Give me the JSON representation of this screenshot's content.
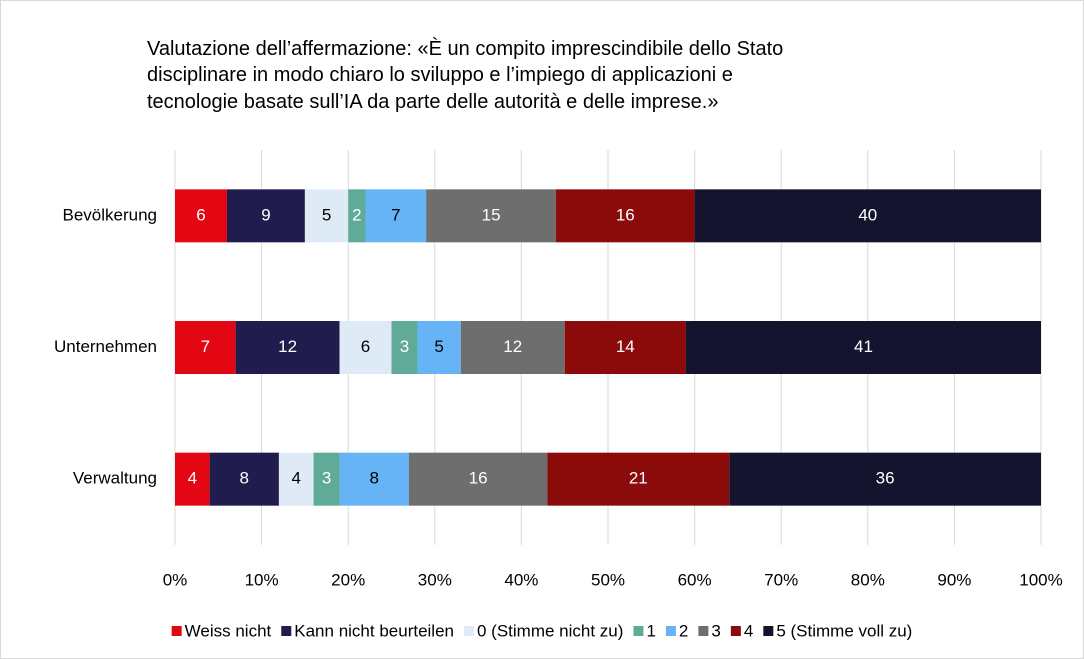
{
  "chart_data": {
    "type": "bar",
    "orientation": "horizontal",
    "stacked": true,
    "title": [
      "Valutazione dell’affermazione: «È un compito imprescindibile dello Stato",
      "disciplinare in modo chiaro lo sviluppo e l’impiego di applicazioni e",
      "tecnologie basate sull’IA da parte delle autorità e delle imprese.»"
    ],
    "categories": [
      "Bevölkerung",
      "Unternehmen",
      "Verwaltung"
    ],
    "series": [
      {
        "name": "Weiss nicht",
        "color": "#e30613",
        "values": [
          6,
          7,
          4
        ]
      },
      {
        "name": "Kann nicht beurteilen",
        "color": "#201c4e",
        "values": [
          9,
          12,
          8
        ]
      },
      {
        "name": "0 (Stimme nicht zu)",
        "color": "#deebf7",
        "values": [
          5,
          6,
          4
        ]
      },
      {
        "name": "1",
        "color": "#5fab98",
        "values": [
          2,
          3,
          3
        ]
      },
      {
        "name": "2",
        "color": "#66b3f5",
        "values": [
          7,
          5,
          8
        ]
      },
      {
        "name": "3",
        "color": "#6e6e6e",
        "values": [
          15,
          12,
          16
        ]
      },
      {
        "name": "4",
        "color": "#8b0a0a",
        "values": [
          16,
          14,
          21
        ]
      },
      {
        "name": "5 (Stimme voll zu)",
        "color": "#15142f",
        "values": [
          40,
          41,
          36
        ]
      }
    ],
    "xlim": [
      0,
      100
    ],
    "xticks": [
      {
        "value": 0,
        "label": "0%"
      },
      {
        "value": 10,
        "label": "10%"
      },
      {
        "value": 20,
        "label": "20%"
      },
      {
        "value": 30,
        "label": "30%"
      },
      {
        "value": 40,
        "label": "40%"
      },
      {
        "value": 50,
        "label": "50%"
      },
      {
        "value": 60,
        "label": "60%"
      },
      {
        "value": 70,
        "label": "70%"
      },
      {
        "value": 80,
        "label": "80%"
      },
      {
        "value": 90,
        "label": "90%"
      },
      {
        "value": 100,
        "label": "100%"
      }
    ],
    "grid": true,
    "legend": "bottom"
  }
}
